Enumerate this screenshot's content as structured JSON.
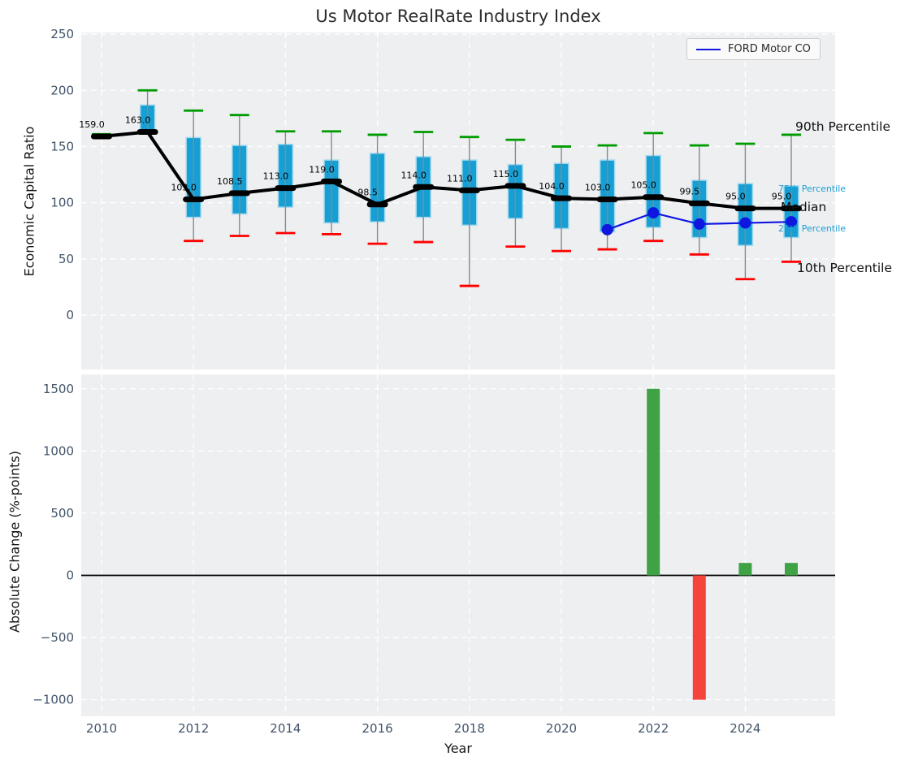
{
  "title": "Us Motor RealRate Industry Index",
  "legend": {
    "label": "FORD Motor CO"
  },
  "axes": {
    "top_ylabel": "Economic Capital Ratio",
    "bottom_ylabel": "Absolute Change (%-points)",
    "xlabel": "Year"
  },
  "annotations": {
    "p90": "90th Percentile",
    "p75": "75th Percentile",
    "median": "Median",
    "p25": "25th Percentile",
    "p10": "10th Percentile"
  },
  "colors": {
    "panel_bg": "#edeff1",
    "grid": "#ffffff",
    "tick_label": "#425469",
    "box_fill": "#159fd4",
    "box_edge": "#a5daee",
    "whisker": "#898989",
    "cap_top": "#009b00",
    "cap_bottom": "#fe0000",
    "median_line": "#000000",
    "ford_line": "#0f16e0",
    "bar_positive": "#3fa245",
    "bar_negative": "#f5443c",
    "zero_line": "#000000",
    "annotation_cyan": "#1b9fd4"
  },
  "chart_data": [
    {
      "type": "boxplot+line",
      "title": "Us Motor RealRate Industry Index",
      "ylabel": "Economic Capital Ratio",
      "xlabel": "Year",
      "ylim": [
        -48.4,
        251.5
      ],
      "yticks": [
        0,
        50,
        100,
        150,
        200,
        250
      ],
      "xticks": [
        2010,
        2012,
        2014,
        2016,
        2018,
        2020,
        2022,
        2024
      ],
      "grid": true,
      "legend_position": "upper right",
      "years": [
        2010,
        2011,
        2012,
        2013,
        2014,
        2015,
        2016,
        2017,
        2018,
        2019,
        2020,
        2021,
        2022,
        2023,
        2024,
        2025
      ],
      "median": [
        159,
        163,
        103,
        108.5,
        113,
        119,
        98.5,
        114,
        111,
        115,
        104,
        103,
        105,
        99.5,
        95,
        95
      ],
      "median_labels": [
        "159.0",
        "163.0",
        "103.0",
        "108.5",
        "113.0",
        "119.0",
        "98.5",
        "114.0",
        "111.0",
        "115.0",
        "104.0",
        "103.0",
        "105.0",
        "99.5",
        "95.0",
        "95.0"
      ],
      "q3": [
        160,
        187,
        158,
        151,
        152,
        138,
        144,
        141,
        138,
        134,
        135,
        138,
        142,
        120,
        117,
        115
      ],
      "q1": [
        158,
        163,
        87,
        90,
        96,
        82,
        83,
        87,
        80,
        86,
        77,
        74,
        78,
        69,
        62,
        69
      ],
      "p90": [
        161,
        200,
        182,
        178,
        163.5,
        163.5,
        160.5,
        163,
        158.5,
        156,
        150,
        151,
        162,
        151,
        152.5,
        160.5
      ],
      "p10": [
        158,
        162,
        66,
        70.5,
        73,
        72,
        63.5,
        65,
        26,
        61,
        57,
        58.5,
        66,
        54,
        32,
        47.5
      ],
      "series": [
        {
          "name": "FORD Motor CO",
          "x": [
            2021,
            2022,
            2023,
            2024,
            2025
          ],
          "values": [
            76,
            91,
            81,
            82,
            83
          ]
        }
      ]
    },
    {
      "type": "bar",
      "ylabel": "Absolute Change (%-points)",
      "xlabel": "Year",
      "ylim": [
        -1133,
        1616
      ],
      "yticks": [
        -1000,
        -500,
        0,
        500,
        1000,
        1500
      ],
      "xticks": [
        2010,
        2012,
        2014,
        2016,
        2018,
        2020,
        2022,
        2024
      ],
      "grid": true,
      "bars": [
        {
          "year": 2022,
          "value": 1500
        },
        {
          "year": 2023,
          "value": -1000
        },
        {
          "year": 2024,
          "value": 100
        },
        {
          "year": 2025,
          "value": 100
        }
      ]
    }
  ]
}
